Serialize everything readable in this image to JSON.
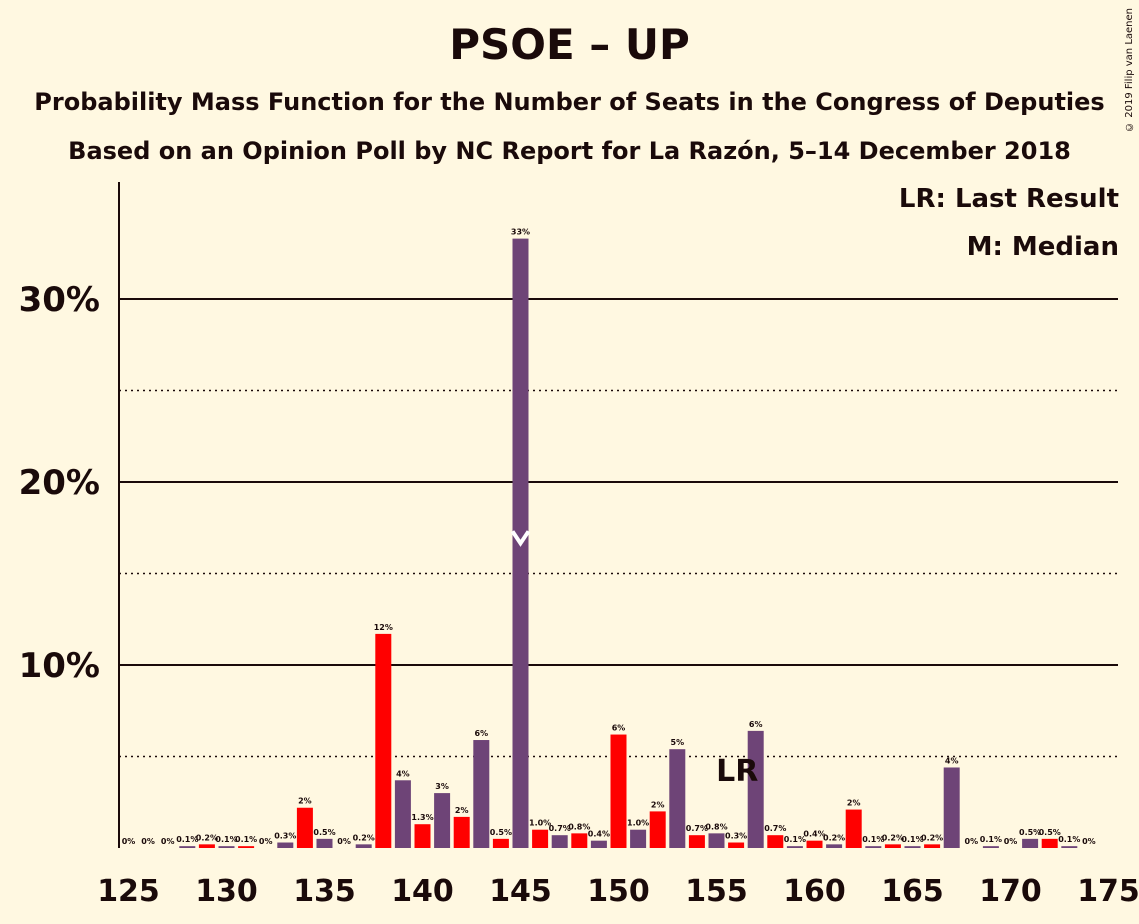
{
  "chart_data": {
    "type": "bar",
    "title": "PSOE – UP",
    "subtitle": "Probability Mass Function for the Number of Seats in the Congress of Deputies",
    "subtitle2": "Based on an Opinion Poll by NC Report for La Razón, 5–14 December 2018",
    "copyright": "© 2019 Filip van Laenen",
    "legend": {
      "last_result": "LR: Last Result",
      "median": "M: Median",
      "placement": "top-right"
    },
    "xlim": [
      125,
      175
    ],
    "ylim": [
      0,
      36
    ],
    "x_ticks": [
      "125",
      "130",
      "135",
      "140",
      "145",
      "150",
      "155",
      "160",
      "165",
      "170",
      "175"
    ],
    "y_ticks": [
      {
        "value": 10,
        "label": "10%"
      },
      {
        "value": 20,
        "label": "20%"
      },
      {
        "value": 30,
        "label": "30%"
      }
    ],
    "grid": {
      "solid": [
        10,
        20,
        30
      ],
      "dotted": [
        5,
        15,
        25
      ]
    },
    "colors": {
      "red": "#FF0000",
      "purple": "#6E4477",
      "background": "#FFF8E1"
    },
    "median": 145,
    "last_result": 156,
    "last_result_label": "LR",
    "seats": [
      125,
      126,
      127,
      128,
      129,
      130,
      131,
      132,
      133,
      134,
      135,
      136,
      137,
      138,
      139,
      140,
      141,
      142,
      143,
      144,
      145,
      146,
      147,
      148,
      149,
      150,
      151,
      152,
      153,
      154,
      155,
      156,
      157,
      158,
      159,
      160,
      161,
      162,
      163,
      164,
      165,
      166,
      167,
      168,
      169,
      170,
      171,
      172,
      173,
      174
    ],
    "values": [
      0,
      0,
      0,
      0.1,
      0.2,
      0.1,
      0.1,
      0,
      0.3,
      2.2,
      0.5,
      0,
      0.2,
      11.7,
      3.7,
      1.3,
      3.0,
      1.7,
      5.9,
      0.5,
      33.3,
      1.0,
      0.7,
      0.8,
      0.4,
      6.2,
      1.0,
      2.0,
      5.4,
      0.7,
      0.8,
      0.3,
      6.4,
      0.7,
      0.1,
      0.4,
      0.2,
      2.1,
      0.1,
      0.2,
      0.1,
      0.2,
      4.4,
      0,
      0.1,
      0,
      0.5,
      0.5,
      0.1,
      0
    ],
    "labels": [
      "0%",
      "0%",
      "0%",
      "0.1%",
      "0.2%",
      "0.1%",
      "0.1%",
      "0%",
      "0.3%",
      "2%",
      "0.5%",
      "0%",
      "0.2%",
      "12%",
      "4%",
      "1.3%",
      "3%",
      "2%",
      "6%",
      "0.5%",
      "33%",
      "1.0%",
      "0.7%",
      "0.8%",
      "0.4%",
      "6%",
      "1.0%",
      "2%",
      "5%",
      "0.7%",
      "0.8%",
      "0.3%",
      "6%",
      "0.7%",
      "0.1%",
      "0.4%",
      "0.2%",
      "2%",
      "0.1%",
      "0.2%",
      "0.1%",
      "0.2%",
      "4%",
      "0%",
      "0.1%",
      "0%",
      "0.5%",
      "0.5%",
      "0.1%",
      "0%"
    ],
    "series_colors": [
      "red",
      "purple",
      "red",
      "purple",
      "red",
      "purple",
      "red",
      "purple",
      "purple",
      "red",
      "purple",
      "red",
      "purple",
      "red",
      "purple",
      "red",
      "purple",
      "red",
      "purple",
      "red",
      "purple",
      "red",
      "purple",
      "red",
      "purple",
      "red",
      "purple",
      "red",
      "purple",
      "red",
      "purple",
      "red",
      "purple",
      "red",
      "purple",
      "red",
      "purple",
      "red",
      "purple",
      "red",
      "purple",
      "red",
      "purple",
      "red",
      "purple",
      "red",
      "purple",
      "red",
      "purple",
      "red"
    ]
  }
}
